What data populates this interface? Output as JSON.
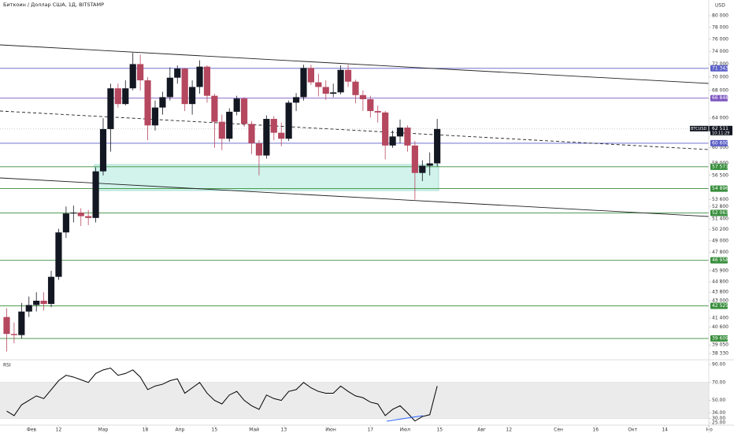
{
  "chart_data": {
    "type": "candlestick",
    "title": "Биткоин / Доллар США, 1Д, BITSTAMP",
    "currency": "USD",
    "xlim": [
      19.3,
      308
    ],
    "xticks": [
      {
        "value": 32,
        "label": "Фев"
      },
      {
        "value": 43,
        "label": "12"
      },
      {
        "value": 61,
        "label": "Мар"
      },
      {
        "value": 78,
        "label": "18"
      },
      {
        "value": 92,
        "label": "Апр"
      },
      {
        "value": 106,
        "label": "15"
      },
      {
        "value": 122,
        "label": "Май"
      },
      {
        "value": 134,
        "label": "13"
      },
      {
        "value": 153,
        "label": "Июн"
      },
      {
        "value": 169,
        "label": "17"
      },
      {
        "value": 183,
        "label": "Июл"
      },
      {
        "value": 197,
        "label": "15"
      },
      {
        "value": 214,
        "label": "Авг"
      },
      {
        "value": 225,
        "label": "12"
      },
      {
        "value": 245,
        "label": "Сен"
      },
      {
        "value": 260,
        "label": "16"
      },
      {
        "value": 275,
        "label": "Окт"
      },
      {
        "value": 288,
        "label": "14"
      },
      {
        "value": 306,
        "label": "Но"
      }
    ],
    "ylim": [
      37940,
      82790
    ],
    "log_scale": true,
    "yticks": [
      {
        "value": 80000,
        "label": "80 000"
      },
      {
        "value": 78000,
        "label": "78 000"
      },
      {
        "value": 76000,
        "label": "76 000"
      },
      {
        "value": 74000,
        "label": "74 000"
      },
      {
        "value": 72000,
        "label": "72 000"
      },
      {
        "value": 70000,
        "label": "70 000"
      },
      {
        "value": 68000,
        "label": "68 000"
      },
      {
        "value": 66800,
        "label": "66 800"
      },
      {
        "value": 64000,
        "label": "64 000"
      },
      {
        "value": 62000,
        "label": "62 000"
      },
      {
        "value": 60000,
        "label": "60 000"
      },
      {
        "value": 58000,
        "label": "58 000"
      },
      {
        "value": 56500,
        "label": "56 500"
      },
      {
        "value": 53600,
        "label": "53 600"
      },
      {
        "value": 52800,
        "label": "52 800"
      },
      {
        "value": 51400,
        "label": "51 400"
      },
      {
        "value": 50200,
        "label": "50 200"
      },
      {
        "value": 49000,
        "label": "49 000"
      },
      {
        "value": 47800,
        "label": "47 800"
      },
      {
        "value": 45900,
        "label": "45 900"
      },
      {
        "value": 44800,
        "label": "44 800"
      },
      {
        "value": 43800,
        "label": "43 800"
      },
      {
        "value": 43000,
        "label": "43 000"
      },
      {
        "value": 41400,
        "label": "41 400"
      },
      {
        "value": 40600,
        "label": "40 600"
      },
      {
        "value": 39050,
        "label": "39 050"
      },
      {
        "value": 38330,
        "label": "38 330"
      }
    ],
    "candles": {
      "up_color": "#131722",
      "down_color": "#b5475f",
      "x": [
        22,
        25,
        28,
        31,
        34,
        37,
        40,
        43,
        46,
        49,
        52,
        55,
        58,
        61,
        64,
        67,
        70,
        73,
        76,
        79,
        82,
        85,
        88,
        91,
        94,
        97,
        100,
        103,
        106,
        109,
        112,
        115,
        118,
        121,
        124,
        127,
        130,
        133,
        136,
        139,
        142,
        145,
        148,
        151,
        154,
        157,
        160,
        163,
        166,
        169,
        172,
        175,
        178,
        181,
        184,
        187,
        190,
        193,
        196
      ],
      "open": [
        41500,
        40000,
        39900,
        42000,
        42600,
        43000,
        42700,
        45300,
        49900,
        52000,
        52100,
        51700,
        51500,
        57000,
        62500,
        68300,
        66000,
        68300,
        72000,
        69500,
        63000,
        65500,
        67000,
        69900,
        71300,
        66000,
        68500,
        71600,
        67200,
        63500,
        61200,
        64900,
        66800,
        63200,
        60600,
        59000,
        63900,
        62000,
        61200,
        66200,
        67000,
        71400,
        69200,
        68500,
        67500,
        67700,
        71100,
        69300,
        67300,
        66700,
        65000,
        64800,
        60300,
        61500,
        62700,
        60300,
        56800,
        57700,
        58000
      ],
      "high": [
        42300,
        41000,
        42800,
        43400,
        43800,
        43800,
        45900,
        50300,
        52800,
        52900,
        52600,
        52400,
        57500,
        64000,
        69000,
        69000,
        69500,
        73800,
        73500,
        70000,
        66500,
        67800,
        71500,
        71800,
        71400,
        69500,
        72600,
        71800,
        67500,
        64500,
        65400,
        67200,
        67000,
        63600,
        61000,
        64400,
        64300,
        63400,
        66500,
        67600,
        71900,
        71900,
        70500,
        69500,
        69000,
        71800,
        71900,
        69600,
        68000,
        67200,
        65800,
        65000,
        62300,
        63800,
        63000,
        60900,
        58400,
        59400,
        63900
      ],
      "low": [
        38500,
        39200,
        39600,
        41500,
        42000,
        42100,
        42400,
        45000,
        49300,
        51000,
        50600,
        50700,
        51000,
        56500,
        59500,
        65500,
        65800,
        68000,
        68000,
        61000,
        62300,
        64500,
        66500,
        69000,
        65000,
        64500,
        67500,
        66200,
        60000,
        59700,
        60800,
        64400,
        62800,
        59200,
        56500,
        58600,
        61000,
        60200,
        60900,
        65000,
        66500,
        68800,
        67100,
        66600,
        67000,
        67400,
        68500,
        66100,
        65000,
        64100,
        63400,
        58500,
        60000,
        60600,
        59500,
        53600,
        55800,
        56500,
        57600
      ],
      "close": [
        40000,
        39900,
        42000,
        42600,
        43000,
        42700,
        45300,
        49900,
        52000,
        52100,
        51700,
        51500,
        57000,
        62500,
        68300,
        66000,
        68300,
        72000,
        69500,
        63000,
        65500,
        67000,
        69900,
        71300,
        66000,
        68500,
        71600,
        67200,
        63500,
        61200,
        64900,
        66800,
        63200,
        60600,
        59000,
        63900,
        62000,
        61200,
        66200,
        67000,
        71400,
        69200,
        68500,
        67500,
        67700,
        71100,
        69300,
        67300,
        66700,
        65000,
        64800,
        60300,
        61500,
        62700,
        60300,
        56800,
        57700,
        58000,
        62511
      ]
    },
    "levels": [
      {
        "value": 71343,
        "label": "71 343",
        "color": "#5b5fc7"
      },
      {
        "value": 66848,
        "label": "66 848",
        "color": "#7e57c2"
      },
      {
        "value": 60600,
        "label": "60 600",
        "color": "#5b5fc7"
      },
      {
        "value": 57571,
        "label": "57 571",
        "color": "#388e3c"
      },
      {
        "value": 54896,
        "label": "54 896",
        "color": "#388e3c"
      },
      {
        "value": 52063,
        "label": "52 063",
        "color": "#388e3c"
      },
      {
        "value": 46958,
        "label": "46 958",
        "color": "#388e3c"
      },
      {
        "value": 42525,
        "label": "42 525",
        "color": "#388e3c"
      },
      {
        "value": 39609,
        "label": "39 609",
        "color": "#388e3c"
      }
    ],
    "symbol": "BTCUSD",
    "last_price": {
      "value": 62511,
      "label": "62 511"
    },
    "countdown": "10:11:29",
    "rsi": {
      "name": "RSI",
      "color": "#000000",
      "ylim": [
        22.4,
        94.4
      ],
      "band": [
        30,
        70
      ],
      "yticks": [
        {
          "value": 90,
          "label": "90.00"
        },
        {
          "value": 70,
          "label": "70.00"
        },
        {
          "value": 50,
          "label": "50.00"
        },
        {
          "value": 36,
          "label": "36.00"
        },
        {
          "value": 30,
          "label": "30.00"
        },
        {
          "value": 25,
          "label": "25.00"
        }
      ],
      "values": [
        38,
        33,
        45,
        50,
        55,
        52,
        62,
        72,
        78,
        76,
        73,
        70,
        80,
        84,
        86,
        78,
        80,
        84,
        76,
        62,
        66,
        68,
        72,
        74,
        58,
        64,
        70,
        58,
        50,
        46,
        56,
        60,
        50,
        44,
        40,
        56,
        52,
        50,
        60,
        62,
        70,
        64,
        60,
        58,
        58,
        66,
        60,
        55,
        53,
        48,
        46,
        33,
        40,
        44,
        36,
        27,
        32,
        34,
        66
      ]
    }
  }
}
